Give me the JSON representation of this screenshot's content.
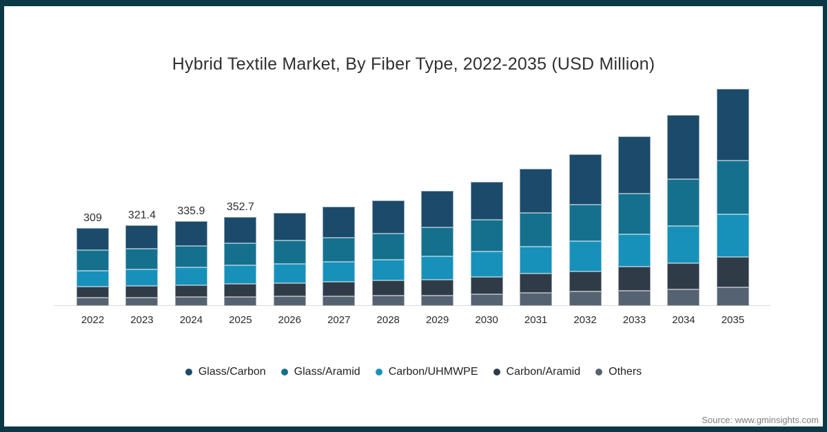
{
  "source": "Source: www.gminsights.com",
  "colors": {
    "page_border": "#0a3945",
    "background": "#ffffff",
    "axis_line": "#dcdcdc",
    "title_text": "#303030",
    "value_label_text": "#2d2d2d",
    "source_text": "#7f7f7f"
  },
  "chart_data": {
    "type": "bar",
    "stacked": true,
    "title": "Hybrid Textile Market, By Fiber Type, 2022-2035 (USD Million)",
    "categories": [
      "2022",
      "2023",
      "2024",
      "2025",
      "2026",
      "2027",
      "2028",
      "2029",
      "2030",
      "2031",
      "2032",
      "2033",
      "2034",
      "2035"
    ],
    "series": [
      {
        "name": "Glass/Carbon",
        "color": "#1b4a6b",
        "values": [
          88,
          93,
          99,
          104,
          111,
          122,
          132,
          145,
          153,
          175,
          199,
          226,
          255,
          286
        ]
      },
      {
        "name": "Glass/Aramid",
        "color": "#15708e",
        "values": [
          81,
          82,
          84,
          87,
          92,
          96,
          104,
          115,
          124,
          133,
          146,
          160,
          186,
          214
        ]
      },
      {
        "name": "Carbon/UHMWPE",
        "color": "#1791ba",
        "values": [
          62,
          67,
          70,
          75,
          76,
          79,
          82,
          91,
          102,
          106,
          120,
          131,
          148,
          168
        ]
      },
      {
        "name": "Carbon/Aramid",
        "color": "#2f3c48",
        "values": [
          46,
          46,
          48,
          50,
          52,
          57,
          60,
          63,
          69,
          77,
          80,
          95,
          104,
          120
        ]
      },
      {
        "name": "Others",
        "color": "#556271",
        "values": [
          32,
          33.4,
          34.9,
          36.7,
          39,
          39,
          41,
          42,
          46,
          53,
          57,
          60,
          66,
          75
        ]
      }
    ],
    "totals": [
      309,
      321.4,
      335.9,
      352.7,
      370,
      393,
      419,
      456,
      494,
      544,
      602,
      672,
      759,
      863
    ],
    "data_labels": {
      "2022": "309",
      "2023": "321.4",
      "2024": "335.9",
      "2025": "352.7"
    },
    "legend_position": "bottom",
    "gridlines": false,
    "y_axis_visible": false,
    "x_axis_line": true
  }
}
